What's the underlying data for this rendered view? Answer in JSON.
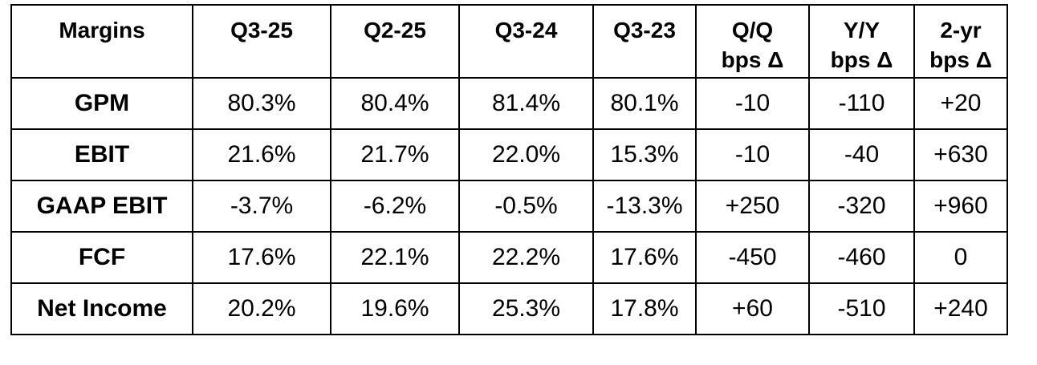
{
  "table": {
    "headers": [
      "Margins",
      "Q3-25",
      "Q2-25",
      "Q3-24",
      "Q3-23",
      [
        "Q/Q",
        "bps Δ"
      ],
      [
        "Y/Y",
        "bps Δ"
      ],
      [
        "2-yr",
        "bps Δ"
      ]
    ],
    "rows": [
      [
        "GPM",
        "80.3%",
        "80.4%",
        "81.4%",
        "80.1%",
        "-10",
        "-110",
        "+20"
      ],
      [
        "EBIT",
        "21.6%",
        "21.7%",
        "22.0%",
        "15.3%",
        "-10",
        "-40",
        "+630"
      ],
      [
        "GAAP EBIT",
        "-3.7%",
        "-6.2%",
        "-0.5%",
        "-13.3%",
        "+250",
        "-320",
        "+960"
      ],
      [
        "FCF",
        "17.6%",
        "22.1%",
        "22.2%",
        "17.6%",
        "-450",
        "-460",
        "0"
      ],
      [
        "Net Income",
        "20.2%",
        "19.6%",
        "25.3%",
        "17.8%",
        "+60",
        "-510",
        "+240"
      ]
    ]
  }
}
